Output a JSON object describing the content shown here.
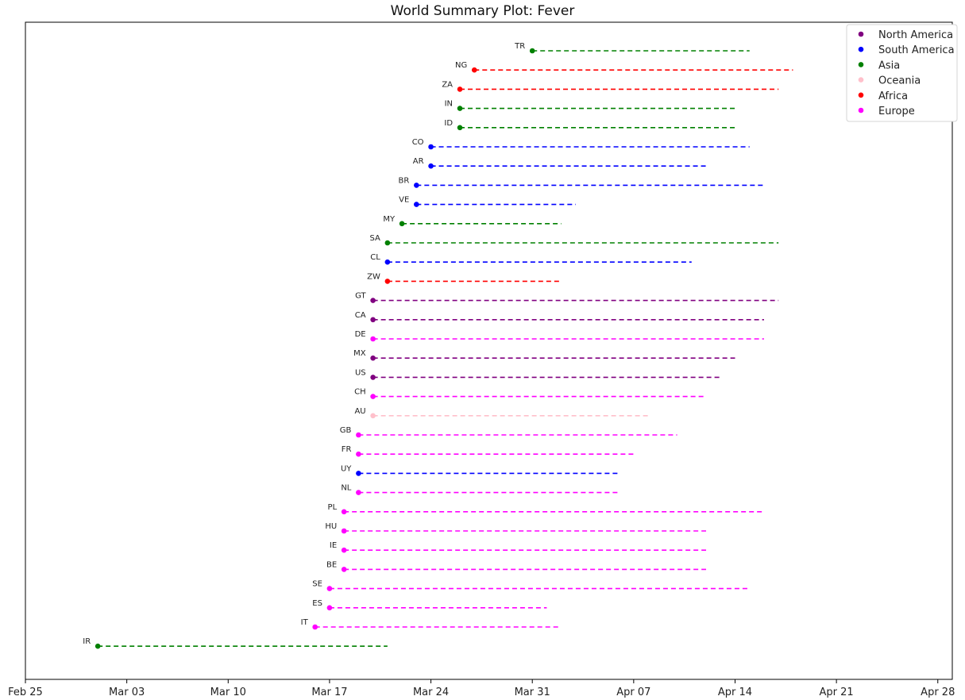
{
  "chart_data": {
    "type": "timeline",
    "title": "World Summary Plot: Fever",
    "x_ticks": [
      "Feb 25",
      "Mar 03",
      "Mar 10",
      "Mar 17",
      "Mar 24",
      "Mar 31",
      "Apr 07",
      "Apr 14",
      "Apr 21",
      "Apr 28"
    ],
    "xlim": [
      "2020-02-25",
      "2020-04-29"
    ],
    "grid": false,
    "legend_position": "top-right",
    "legend": [
      {
        "name": "North America",
        "color": "#800080"
      },
      {
        "name": "South America",
        "color": "#0000ff"
      },
      {
        "name": "Asia",
        "color": "#008000"
      },
      {
        "name": "Oceania",
        "color": "#ffc0cb"
      },
      {
        "name": "Africa",
        "color": "#ff0000"
      },
      {
        "name": "Europe",
        "color": "#ff00ff"
      }
    ],
    "series": [
      {
        "label": "TR",
        "region": "Asia",
        "start": "2020-03-31",
        "end": "2020-04-15"
      },
      {
        "label": "NG",
        "region": "Africa",
        "start": "2020-03-27",
        "end": "2020-04-18"
      },
      {
        "label": "ZA",
        "region": "Africa",
        "start": "2020-03-26",
        "end": "2020-04-17"
      },
      {
        "label": "IN",
        "region": "Asia",
        "start": "2020-03-26",
        "end": "2020-04-14"
      },
      {
        "label": "ID",
        "region": "Asia",
        "start": "2020-03-26",
        "end": "2020-04-14"
      },
      {
        "label": "CO",
        "region": "South America",
        "start": "2020-03-24",
        "end": "2020-04-15"
      },
      {
        "label": "AR",
        "region": "South America",
        "start": "2020-03-24",
        "end": "2020-04-12"
      },
      {
        "label": "BR",
        "region": "South America",
        "start": "2020-03-23",
        "end": "2020-04-16"
      },
      {
        "label": "VE",
        "region": "South America",
        "start": "2020-03-23",
        "end": "2020-04-03"
      },
      {
        "label": "MY",
        "region": "Asia",
        "start": "2020-03-22",
        "end": "2020-04-02"
      },
      {
        "label": "SA",
        "region": "Asia",
        "start": "2020-03-21",
        "end": "2020-04-17"
      },
      {
        "label": "CL",
        "region": "South America",
        "start": "2020-03-21",
        "end": "2020-04-11"
      },
      {
        "label": "ZW",
        "region": "Africa",
        "start": "2020-03-21",
        "end": "2020-04-02"
      },
      {
        "label": "GT",
        "region": "North America",
        "start": "2020-03-20",
        "end": "2020-04-17"
      },
      {
        "label": "CA",
        "region": "North America",
        "start": "2020-03-20",
        "end": "2020-04-16"
      },
      {
        "label": "DE",
        "region": "Europe",
        "start": "2020-03-20",
        "end": "2020-04-16"
      },
      {
        "label": "MX",
        "region": "North America",
        "start": "2020-03-20",
        "end": "2020-04-14"
      },
      {
        "label": "US",
        "region": "North America",
        "start": "2020-03-20",
        "end": "2020-04-13"
      },
      {
        "label": "CH",
        "region": "Europe",
        "start": "2020-03-20",
        "end": "2020-04-12"
      },
      {
        "label": "AU",
        "region": "Oceania",
        "start": "2020-03-20",
        "end": "2020-04-08"
      },
      {
        "label": "GB",
        "region": "Europe",
        "start": "2020-03-19",
        "end": "2020-04-10"
      },
      {
        "label": "FR",
        "region": "Europe",
        "start": "2020-03-19",
        "end": "2020-04-07"
      },
      {
        "label": "UY",
        "region": "South America",
        "start": "2020-03-19",
        "end": "2020-04-06"
      },
      {
        "label": "NL",
        "region": "Europe",
        "start": "2020-03-19",
        "end": "2020-04-06"
      },
      {
        "label": "PL",
        "region": "Europe",
        "start": "2020-03-18",
        "end": "2020-04-16"
      },
      {
        "label": "HU",
        "region": "Europe",
        "start": "2020-03-18",
        "end": "2020-04-12"
      },
      {
        "label": "IE",
        "region": "Europe",
        "start": "2020-03-18",
        "end": "2020-04-12"
      },
      {
        "label": "BE",
        "region": "Europe",
        "start": "2020-03-18",
        "end": "2020-04-12"
      },
      {
        "label": "SE",
        "region": "Europe",
        "start": "2020-03-17",
        "end": "2020-04-15"
      },
      {
        "label": "ES",
        "region": "Europe",
        "start": "2020-03-17",
        "end": "2020-04-01"
      },
      {
        "label": "IT",
        "region": "Europe",
        "start": "2020-03-16",
        "end": "2020-04-02"
      },
      {
        "label": "IR",
        "region": "Asia",
        "start": "2020-03-01",
        "end": "2020-03-21"
      }
    ]
  }
}
